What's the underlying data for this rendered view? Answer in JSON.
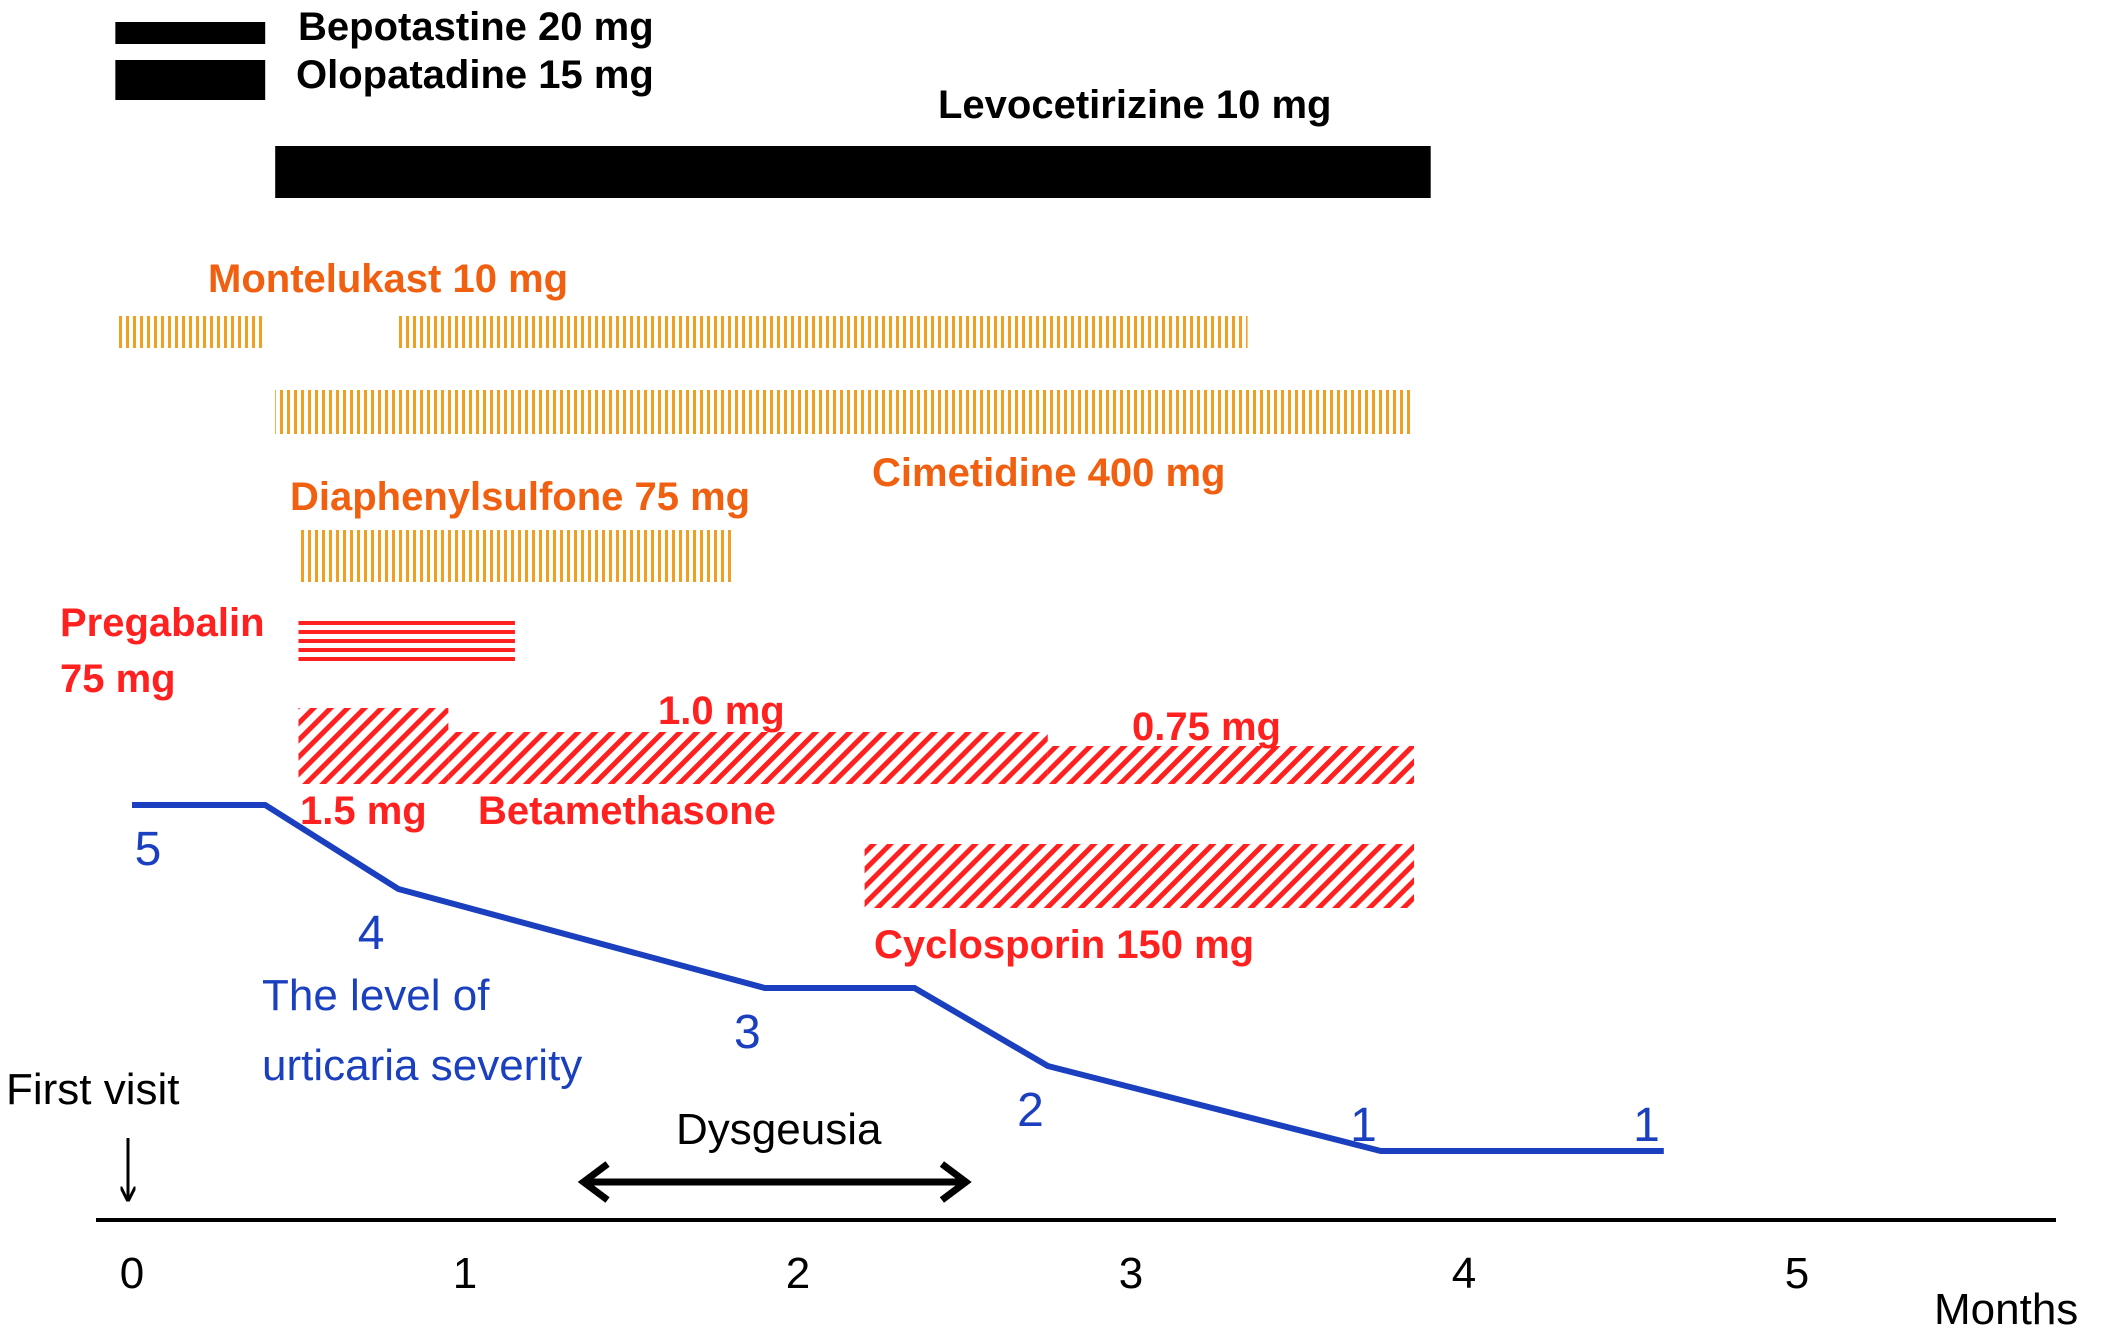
{
  "chart_data": {
    "type": "timeline",
    "x_axis": {
      "label": "Months",
      "ticks": [
        0,
        1,
        2,
        3,
        4,
        5
      ],
      "range": [
        0,
        6
      ]
    },
    "annotations": {
      "first_visit": "First visit",
      "dysgeusia": {
        "label": "Dysgeusia",
        "start": 1.35,
        "end": 2.3
      },
      "severity_title_line1": "The level of",
      "severity_title_line2": "urticaria severity"
    },
    "severity": {
      "points": [
        {
          "x": 0,
          "y": 5
        },
        {
          "x": 0.4,
          "y": 5
        },
        {
          "x": 0.8,
          "y": 4
        },
        {
          "x": 1.9,
          "y": 3
        },
        {
          "x": 2.35,
          "y": 3
        },
        {
          "x": 2.75,
          "y": 2
        },
        {
          "x": 3.75,
          "y": 1
        },
        {
          "x": 4.6,
          "y": 1
        }
      ],
      "labels": [
        {
          "text": "5",
          "x": 0.05,
          "y": 5
        },
        {
          "text": "4",
          "x": 0.72,
          "y": 4
        },
        {
          "text": "3",
          "x": 1.85,
          "y": 3
        },
        {
          "text": "2",
          "x": 2.7,
          "y": 2
        },
        {
          "text": "1",
          "x": 3.7,
          "y": 1
        },
        {
          "text": "1",
          "x": 4.55,
          "y": 1
        }
      ]
    },
    "drugs": [
      {
        "name": "Bepotastine 20 mg",
        "color": "#000000",
        "style": "solid",
        "periods": [
          [
            -0.05,
            0.4
          ]
        ]
      },
      {
        "name": "Olopatadine 15 mg",
        "color": "#000000",
        "style": "solid",
        "periods": [
          [
            -0.05,
            0.4
          ]
        ]
      },
      {
        "name": "Levocetirizine 10 mg",
        "color": "#000000",
        "style": "solid",
        "periods": [
          [
            0.43,
            3.9
          ]
        ]
      },
      {
        "name": "Montelukast 10 mg",
        "color": "#f0a020",
        "style": "vertical",
        "periods": [
          [
            -0.05,
            0.4
          ],
          [
            0.8,
            3.35
          ]
        ]
      },
      {
        "name": "Cimetidine 400 mg",
        "color": "#f0a020",
        "style": "vertical",
        "periods": [
          [
            0.43,
            3.85
          ]
        ]
      },
      {
        "name": "Diaphenylsulfone 75 mg",
        "color": "#f0a020",
        "style": "vertical",
        "periods": [
          [
            0.5,
            1.8
          ]
        ]
      },
      {
        "name": "Pregabalin",
        "name_line2": "75 mg",
        "color": "#ff2020",
        "style": "horizontal",
        "periods": [
          [
            0.5,
            1.15
          ]
        ]
      },
      {
        "name": "Betamethasone",
        "color": "#ff2020",
        "style": "diagonal",
        "periods": [
          [
            0.5,
            0.95
          ],
          [
            0.95,
            2.75
          ],
          [
            2.75,
            3.85
          ]
        ],
        "dose_labels": [
          "1.5 mg",
          "1.0 mg",
          "0.75 mg"
        ]
      },
      {
        "name": "Cyclosporin 150 mg",
        "color": "#ff2020",
        "style": "diagonal",
        "periods": [
          [
            2.2,
            3.85
          ]
        ]
      }
    ]
  }
}
